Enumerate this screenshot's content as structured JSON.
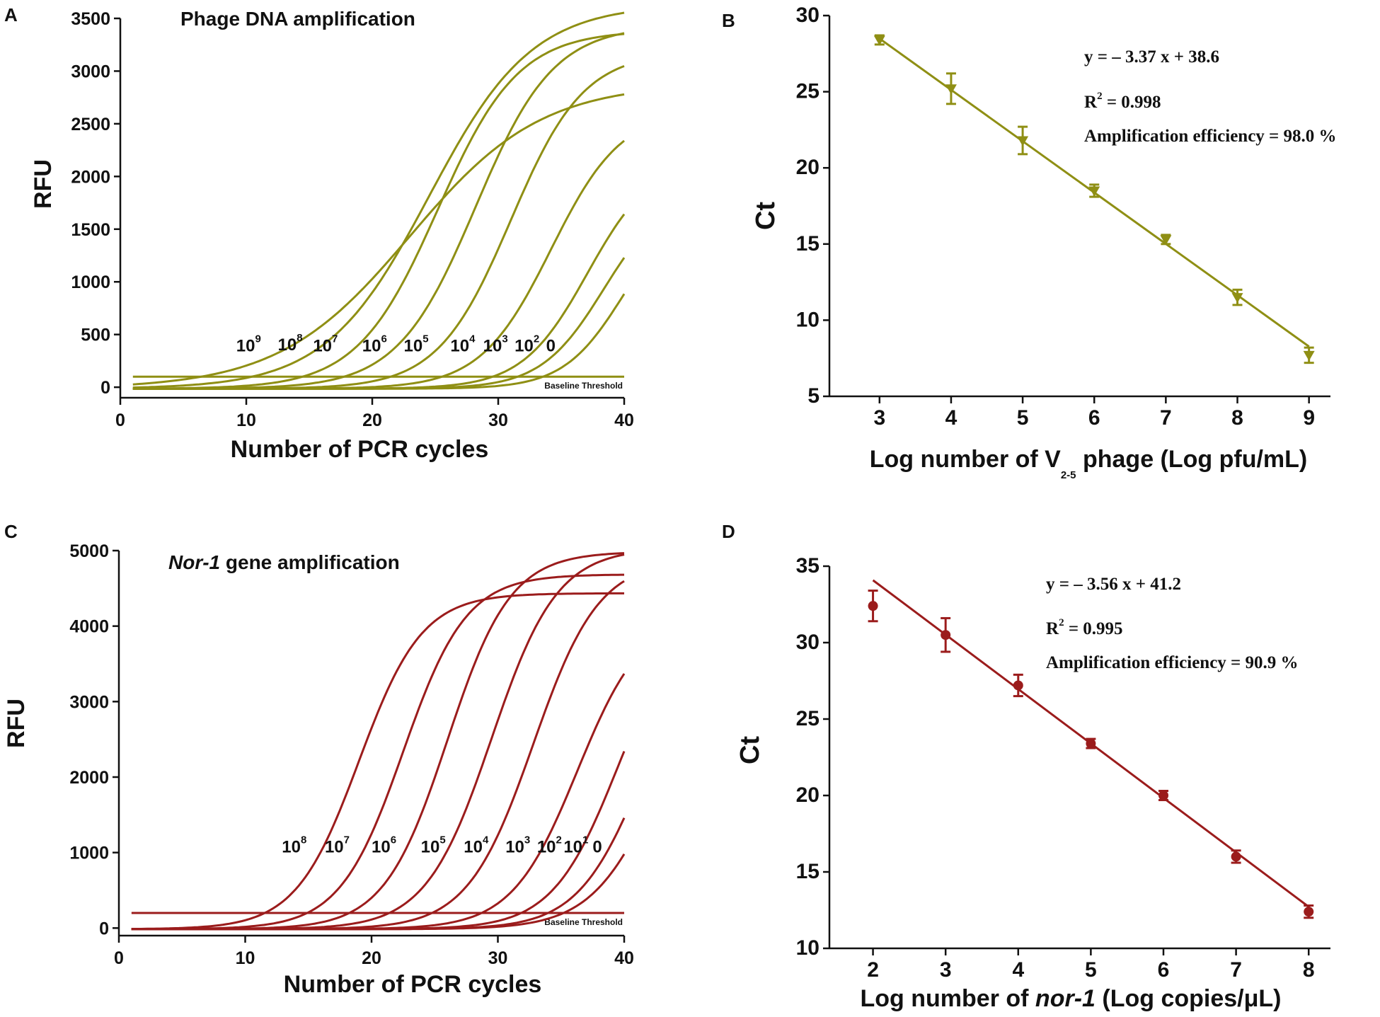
{
  "chart_data": [
    {
      "id": "A",
      "type": "line",
      "panel_letter": "A",
      "title": "Phage DNA amplification",
      "xlabel": "Number of PCR cycles",
      "ylabel": "RFU",
      "xlim": [
        0,
        40
      ],
      "ylim": [
        -100,
        3500
      ],
      "x_ticks": [
        0,
        10,
        20,
        30,
        40
      ],
      "y_ticks": [
        0,
        500,
        1000,
        1500,
        2000,
        2500,
        3000,
        3500
      ],
      "color": "#8f8f14",
      "baseline_label": "Baseline Threshold",
      "threshold": 100,
      "series": [
        {
          "name": "10^9",
          "label_base": "10",
          "label_exp": "9",
          "label_x": 9.2,
          "label_y": 340,
          "ct": 8.0,
          "plateau": 2900,
          "midpoint": 23.0,
          "slope": 5.2
        },
        {
          "name": "10^8",
          "label_base": "10",
          "label_exp": "8",
          "label_x": 12.5,
          "label_y": 350,
          "ct": 12.2,
          "plateau": 3650,
          "midpoint": 24.5,
          "slope": 4.1
        },
        {
          "name": "10^7",
          "label_base": "10",
          "label_exp": "7",
          "label_x": 15.3,
          "label_y": 340,
          "ct": 15.5,
          "plateau": 3400,
          "midpoint": 25.2,
          "slope": 3.2
        },
        {
          "name": "10^6",
          "label_base": "10",
          "label_exp": "6",
          "label_x": 19.2,
          "label_y": 340,
          "ct": 18.8,
          "plateau": 3450,
          "midpoint": 28.2,
          "slope": 3.1
        },
        {
          "name": "10^5",
          "label_base": "10",
          "label_exp": "5",
          "label_x": 22.5,
          "label_y": 340,
          "ct": 22.3,
          "plateau": 3200,
          "midpoint": 31.0,
          "slope": 2.9
        },
        {
          "name": "10^4",
          "label_base": "10",
          "label_exp": "4",
          "label_x": 26.2,
          "label_y": 340,
          "ct": 25.5,
          "plateau": 2650,
          "midpoint": 34.2,
          "slope": 2.8
        },
        {
          "name": "10^3",
          "label_base": "10",
          "label_exp": "3",
          "label_x": 28.8,
          "label_y": 340,
          "ct": 28.9,
          "plateau": 2200,
          "midpoint": 37.1,
          "slope": 2.6
        },
        {
          "name": "10^2",
          "label_base": "10",
          "label_exp": "2",
          "label_x": 31.3,
          "label_y": 340,
          "ct": 31.2,
          "plateau": 1900,
          "midpoint": 38.4,
          "slope": 2.5
        },
        {
          "name": "0",
          "label_base": "0",
          "label_exp": "",
          "label_x": 33.8,
          "label_y": 340,
          "ct": 33.5,
          "plateau": 1800,
          "midpoint": 40.0,
          "slope": 2.4
        }
      ]
    },
    {
      "id": "B",
      "type": "scatter",
      "panel_letter": "B",
      "xlabel_main": "Log number of V",
      "xlabel_sub": "2-5",
      "xlabel_tail": " phage (Log pfu/mL)",
      "ylabel": "Ct",
      "xlim": [
        2.3,
        9.3
      ],
      "ylim": [
        5,
        30
      ],
      "x_ticks": [
        3,
        4,
        5,
        6,
        7,
        8,
        9
      ],
      "y_ticks": [
        5,
        10,
        15,
        20,
        25,
        30
      ],
      "color": "#8f8f14",
      "marker": "triangle-down",
      "x": [
        3,
        4,
        5,
        6,
        7,
        8,
        9
      ],
      "y": [
        28.4,
        25.2,
        21.8,
        18.5,
        15.3,
        11.5,
        7.7
      ],
      "error": [
        0.3,
        1.0,
        0.9,
        0.4,
        0.3,
        0.5,
        0.5
      ],
      "fit": {
        "slope": -3.37,
        "intercept": 38.6,
        "x_range": [
          3,
          9
        ]
      },
      "equation": "y = – 3.37 x + 38.6",
      "r2_label": "R",
      "r2_exp": "2",
      "r2_value": " = 0.998",
      "efficiency": "Amplification efficiency = 98.0 %"
    },
    {
      "id": "C",
      "type": "line",
      "panel_letter": "C",
      "title_italic": "Nor-1",
      "title_rest": " gene amplification",
      "xlabel": "Number of PCR cycles",
      "ylabel": "RFU",
      "xlim": [
        0,
        40
      ],
      "ylim": [
        -100,
        5000
      ],
      "x_ticks": [
        0,
        10,
        20,
        30,
        40
      ],
      "y_ticks": [
        0,
        1000,
        2000,
        3000,
        4000,
        5000
      ],
      "color": "#9b1c1c",
      "baseline_label": "Baseline Threshold",
      "threshold": 200,
      "series": [
        {
          "name": "10^8",
          "label_base": "10",
          "label_exp": "8",
          "label_x": 12.9,
          "label_y": 1000,
          "ct": 11.5,
          "plateau": 4450,
          "midpoint": 19.0,
          "slope": 2.5
        },
        {
          "name": "10^7",
          "label_base": "10",
          "label_exp": "7",
          "label_x": 16.3,
          "label_y": 1000,
          "ct": 14.8,
          "plateau": 4700,
          "midpoint": 22.5,
          "slope": 2.5
        },
        {
          "name": "10^6",
          "label_base": "10",
          "label_exp": "6",
          "label_x": 20.0,
          "label_y": 1000,
          "ct": 18.3,
          "plateau": 5000,
          "midpoint": 26.0,
          "slope": 2.5
        },
        {
          "name": "10^5",
          "label_base": "10",
          "label_exp": "5",
          "label_x": 23.9,
          "label_y": 1000,
          "ct": 21.8,
          "plateau": 5050,
          "midpoint": 29.5,
          "slope": 2.6
        },
        {
          "name": "10^4",
          "label_base": "10",
          "label_exp": "4",
          "label_x": 27.3,
          "label_y": 1000,
          "ct": 25.1,
          "plateau": 4900,
          "midpoint": 32.8,
          "slope": 2.6
        },
        {
          "name": "10^3",
          "label_base": "10",
          "label_exp": "3",
          "label_x": 30.6,
          "label_y": 1000,
          "ct": 28.6,
          "plateau": 4200,
          "midpoint": 36.3,
          "slope": 2.6
        },
        {
          "name": "10^2",
          "label_base": "10",
          "label_exp": "2",
          "label_x": 33.1,
          "label_y": 1000,
          "ct": 31.4,
          "plateau": 4300,
          "midpoint": 39.5,
          "slope": 2.6
        },
        {
          "name": "10^1",
          "label_base": "10",
          "label_exp": "1",
          "label_x": 35.2,
          "label_y": 1000,
          "ct": 32.6,
          "plateau": 4100,
          "midpoint": 41.5,
          "slope": 2.6
        },
        {
          "name": "0",
          "label_base": "0",
          "label_exp": "",
          "label_x": 37.5,
          "label_y": 1000,
          "ct": 33.2,
          "plateau": 3800,
          "midpoint": 42.8,
          "slope": 2.7
        }
      ]
    },
    {
      "id": "D",
      "type": "scatter",
      "panel_letter": "D",
      "xlabel_main": "Log number of ",
      "xlabel_italic": "nor-1",
      "xlabel_tail": " (Log copies/μL)",
      "ylabel": "Ct",
      "xlim": [
        1.4,
        8.3
      ],
      "ylim": [
        10,
        35
      ],
      "x_ticks": [
        2,
        3,
        4,
        5,
        6,
        7,
        8
      ],
      "y_ticks": [
        10,
        15,
        20,
        25,
        30,
        35
      ],
      "color": "#9b1c1c",
      "marker": "circle",
      "x": [
        2,
        3,
        4,
        5,
        6,
        7,
        8
      ],
      "y": [
        32.4,
        30.5,
        27.2,
        23.4,
        20.0,
        16.0,
        12.4
      ],
      "error": [
        1.0,
        1.1,
        0.7,
        0.3,
        0.3,
        0.4,
        0.4
      ],
      "fit": {
        "slope": -3.56,
        "intercept": 41.2,
        "x_range": [
          2,
          8
        ]
      },
      "equation": "y = – 3.56 x + 41.2",
      "r2_label": "R",
      "r2_exp": "2",
      "r2_value": " = 0.995",
      "efficiency": "Amplification efficiency = 90.9 %"
    }
  ]
}
